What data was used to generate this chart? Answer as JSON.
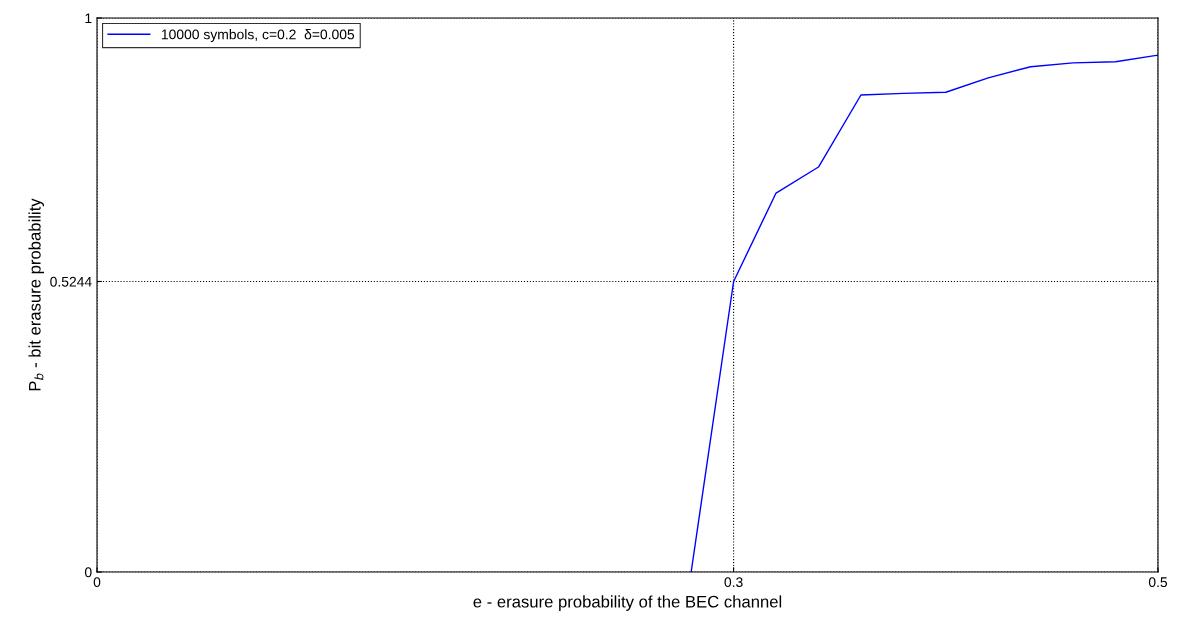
{
  "chart_data": {
    "type": "line",
    "xlabel": "e - erasure probability of the BEC channel",
    "ylabel": "P$_{b}$ - bit erasure probability",
    "x": [
      0.28,
      0.3,
      0.32,
      0.34,
      0.36,
      0.38,
      0.4,
      0.42,
      0.44,
      0.46,
      0.48,
      0.5
    ],
    "series": [
      {
        "name": "10000 symbols, c=0.2  δ=0.005",
        "color": "#0000ff",
        "values": [
          0,
          0.5244,
          0.684,
          0.731,
          0.861,
          0.864,
          0.866,
          0.892,
          0.912,
          0.919,
          0.921,
          0.933
        ]
      }
    ],
    "xlim": [
      0,
      0.5
    ],
    "xticks": [
      0,
      0.3,
      0.5
    ],
    "ylim": [
      0,
      1
    ],
    "yticks": [
      0,
      0.5244,
      1
    ],
    "grid": true,
    "legend": "top left",
    "marker": "none",
    "line_style": "solid"
  }
}
